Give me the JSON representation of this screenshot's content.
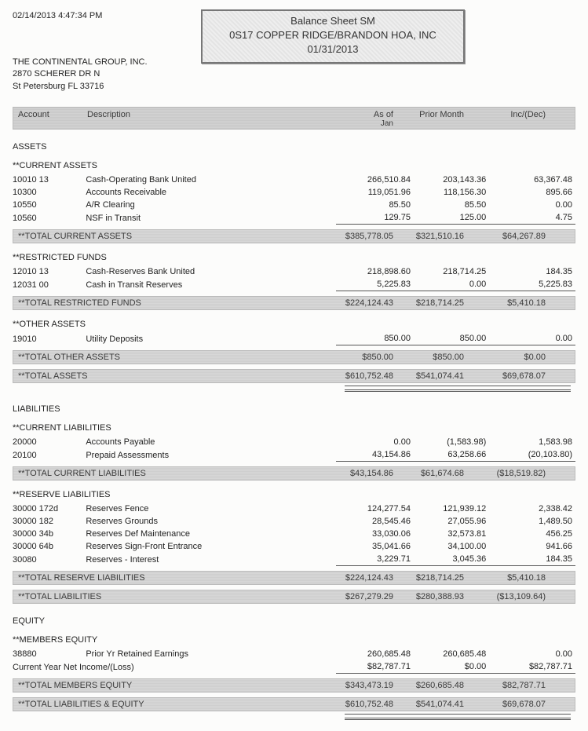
{
  "meta": {
    "timestamp": "02/14/2013 4:47:34 PM",
    "title1": "Balance Sheet SM",
    "title2": "0S17 COPPER RIDGE/BRANDON HOA, INC",
    "title3": "01/31/2013"
  },
  "company": {
    "name": "THE CONTINENTAL GROUP, INC.",
    "addr1": "2870 SCHERER DR N",
    "addr2": "St Petersburg FL 33716"
  },
  "columns": {
    "acct": "Account",
    "desc": "Description",
    "asof": "As of",
    "asof_sub": "Jan",
    "prior": "Prior Month",
    "incdec": "Inc/(Dec)"
  },
  "sections": [
    {
      "title": "ASSETS",
      "groups": [
        {
          "title": "**CURRENT ASSETS",
          "rows": [
            {
              "acct": "10010 13",
              "desc": "Cash-Operating Bank United",
              "v1": "266,510.84",
              "v2": "203,143.36",
              "v3": "63,367.48"
            },
            {
              "acct": "10300",
              "desc": "Accounts Receivable",
              "v1": "119,051.96",
              "v2": "118,156.30",
              "v3": "895.66"
            },
            {
              "acct": "10550",
              "desc": "A/R Clearing",
              "v1": "85.50",
              "v2": "85.50",
              "v3": "0.00"
            },
            {
              "acct": "10560",
              "desc": "NSF in Transit",
              "v1": "129.75",
              "v2": "125.00",
              "v3": "4.75"
            }
          ],
          "total": {
            "label": "**TOTAL CURRENT ASSETS",
            "v1": "$385,778.05",
            "v2": "$321,510.16",
            "v3": "$64,267.89"
          }
        },
        {
          "title": "**RESTRICTED FUNDS",
          "rows": [
            {
              "acct": "12010 13",
              "desc": "Cash-Reserves Bank United",
              "v1": "218,898.60",
              "v2": "218,714.25",
              "v3": "184.35"
            },
            {
              "acct": "12031 00",
              "desc": "Cash in Transit Reserves",
              "v1": "5,225.83",
              "v2": "0.00",
              "v3": "5,225.83"
            }
          ],
          "total": {
            "label": "**TOTAL RESTRICTED FUNDS",
            "v1": "$224,124.43",
            "v2": "$218,714.25",
            "v3": "$5,410.18"
          }
        },
        {
          "title": "**OTHER ASSETS",
          "rows": [
            {
              "acct": "19010",
              "desc": "Utility Deposits",
              "v1": "850.00",
              "v2": "850.00",
              "v3": "0.00"
            }
          ],
          "total": {
            "label": "**TOTAL OTHER ASSETS",
            "v1": "$850.00",
            "v2": "$850.00",
            "v3": "$0.00"
          }
        }
      ],
      "grand": {
        "label": "**TOTAL ASSETS",
        "v1": "$610,752.48",
        "v2": "$541,074.41",
        "v3": "$69,678.07",
        "double": true
      }
    },
    {
      "title": "LIABILITIES",
      "groups": [
        {
          "title": "**CURRENT LIABILITIES",
          "rows": [
            {
              "acct": "20000",
              "desc": "Accounts Payable",
              "v1": "0.00",
              "v2": "(1,583.98)",
              "v3": "1,583.98"
            },
            {
              "acct": "20100",
              "desc": "Prepaid Assessments",
              "v1": "43,154.86",
              "v2": "63,258.66",
              "v3": "(20,103.80)"
            }
          ],
          "total": {
            "label": "**TOTAL CURRENT LIABILITIES",
            "v1": "$43,154.86",
            "v2": "$61,674.68",
            "v3": "($18,519.82)"
          }
        },
        {
          "title": "**RESERVE LIABILITIES",
          "rows": [
            {
              "acct": "30000 172d",
              "desc": "Reserves Fence",
              "v1": "124,277.54",
              "v2": "121,939.12",
              "v3": "2,338.42"
            },
            {
              "acct": "30000 182",
              "desc": "Reserves Grounds",
              "v1": "28,545.46",
              "v2": "27,055.96",
              "v3": "1,489.50"
            },
            {
              "acct": "30000 34b",
              "desc": "Reserves Def Maintenance",
              "v1": "33,030.06",
              "v2": "32,573.81",
              "v3": "456.25"
            },
            {
              "acct": "30000 64b",
              "desc": "Reserves Sign-Front Entrance",
              "v1": "35,041.66",
              "v2": "34,100.00",
              "v3": "941.66"
            },
            {
              "acct": "30080",
              "desc": "Reserves - Interest",
              "v1": "3,229.71",
              "v2": "3,045.36",
              "v3": "184.35"
            }
          ],
          "total": {
            "label": "**TOTAL RESERVE LIABILITIES",
            "v1": "$224,124.43",
            "v2": "$218,714.25",
            "v3": "$5,410.18"
          }
        }
      ],
      "grand": {
        "label": "**TOTAL LIABILITIES",
        "v1": "$267,279.29",
        "v2": "$280,388.93",
        "v3": "($13,109.64)"
      }
    },
    {
      "title": "EQUITY",
      "groups": [
        {
          "title": "**MEMBERS EQUITY",
          "rows": [
            {
              "acct": "38880",
              "desc": "Prior Yr Retained Earnings",
              "v1": "260,685.48",
              "v2": "260,685.48",
              "v3": "0.00"
            },
            {
              "acct": "",
              "desc": "Current Year Net Income/(Loss)",
              "v1": "$82,787.71",
              "v2": "$0.00",
              "v3": "$82,787.71",
              "descSpansAcct": true
            }
          ],
          "total": {
            "label": "**TOTAL MEMBERS EQUITY",
            "v1": "$343,473.19",
            "v2": "$260,685.48",
            "v3": "$82,787.71"
          }
        }
      ],
      "grand": {
        "label": "**TOTAL LIABILITIES & EQUITY",
        "v1": "$610,752.48",
        "v2": "$541,074.41",
        "v3": "$69,678.07",
        "double": true
      }
    }
  ],
  "style": {
    "band_bg": "#d0d0d0",
    "text_color": "#222222",
    "rule_color": "#555555"
  }
}
